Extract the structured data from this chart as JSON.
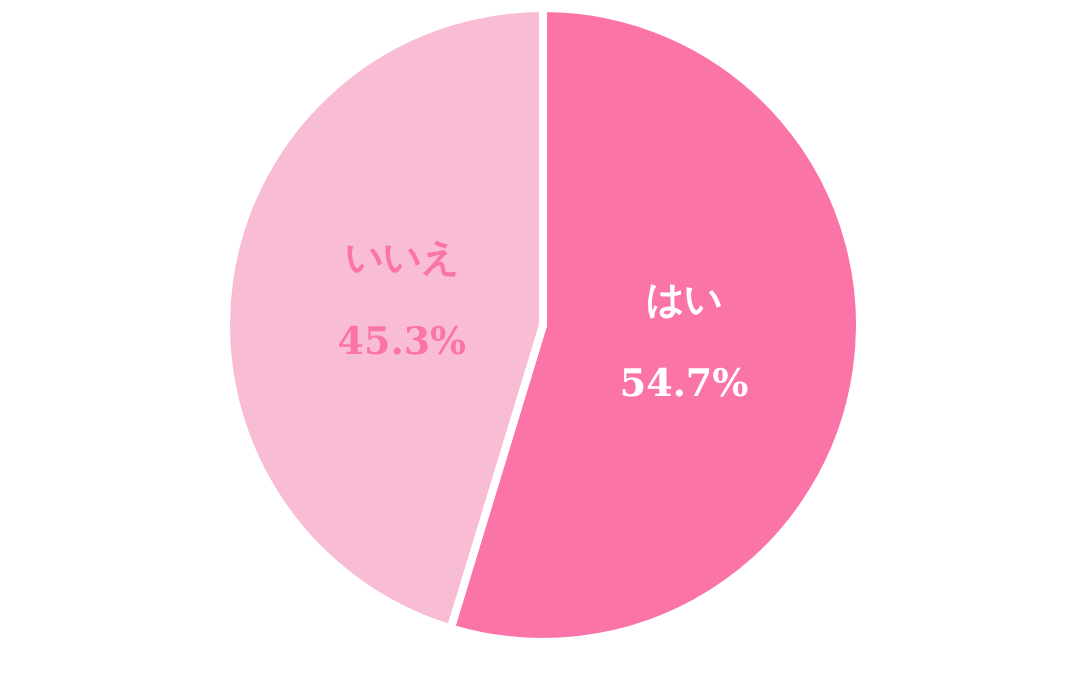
{
  "chart_data": {
    "type": "pie",
    "categories": [
      "はい",
      "いいえ"
    ],
    "values": [
      54.7,
      45.3
    ],
    "colors": [
      "#fb74a8",
      "#f8bdd5"
    ],
    "value_labels": [
      "54.7%",
      "45.3%"
    ],
    "legend": false
  }
}
